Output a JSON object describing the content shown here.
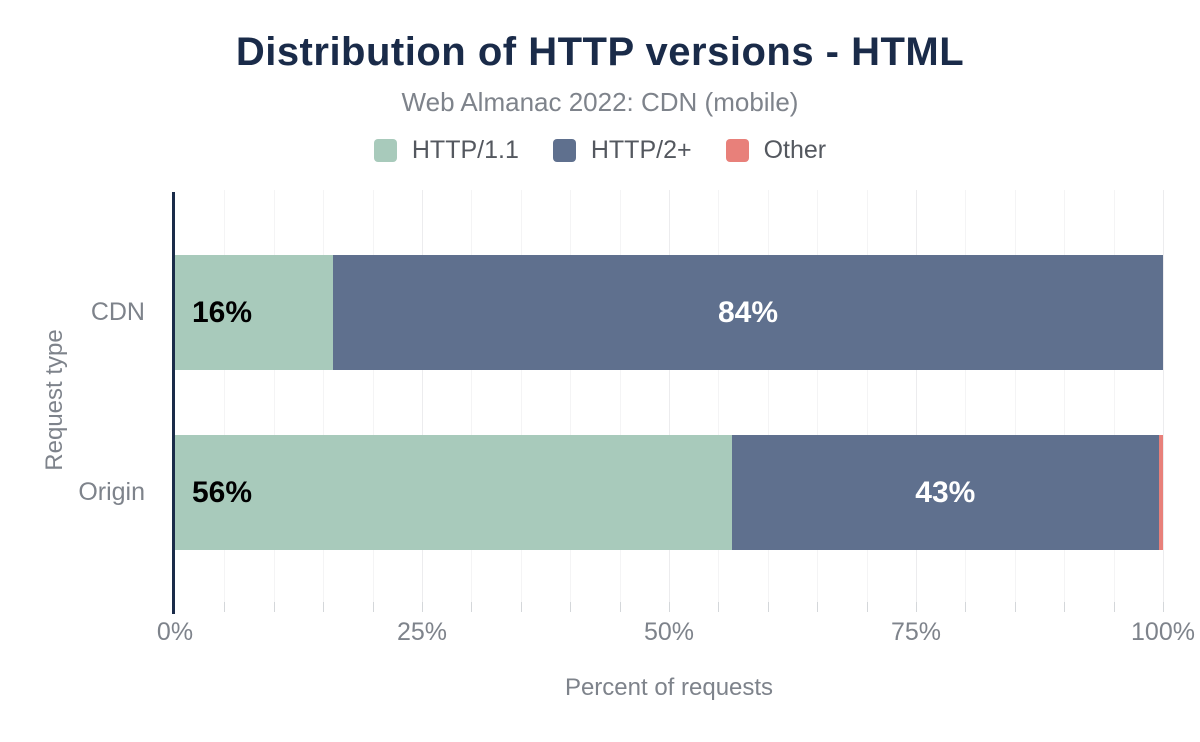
{
  "chart_data": {
    "type": "bar",
    "orientation": "horizontal",
    "stacked": true,
    "title": "Distribution of HTTP versions - HTML",
    "subtitle": "Web Almanac 2022: CDN (mobile)",
    "categories": [
      "CDN",
      "Origin"
    ],
    "series": [
      {
        "name": "HTTP/1.1",
        "color": "#a8cabb",
        "values": [
          16,
          56
        ],
        "labels": [
          "16%",
          "56%"
        ]
      },
      {
        "name": "HTTP/2+",
        "color": "#5f708e",
        "values": [
          84,
          43
        ],
        "labels": [
          "84%",
          "43%"
        ]
      },
      {
        "name": "Other",
        "color": "#e8807a",
        "values": [
          0,
          0.4
        ],
        "labels": [
          "",
          ""
        ]
      }
    ],
    "xlabel": "Percent of requests",
    "ylabel": "Request type",
    "xlim": [
      0,
      100
    ],
    "x_ticks": [
      {
        "value": 0,
        "label": "0%"
      },
      {
        "value": 25,
        "label": "25%"
      },
      {
        "value": 50,
        "label": "50%"
      },
      {
        "value": 75,
        "label": "75%"
      },
      {
        "value": 100,
        "label": "100%"
      }
    ],
    "minor_grid_step": 5,
    "major_grid_step": 25,
    "grid": true,
    "legend_position": "top"
  },
  "palette": {
    "background": "#ffffff",
    "title": "#1a2b49",
    "axis_line": "#1a2b49",
    "axis_text": "#7e838b",
    "legend_text": "#54585f",
    "gridline": "#f4f4f5",
    "gridline_major": "#ececee",
    "bar_label_dark": "#000000",
    "bar_label_light": "#ffffff"
  }
}
